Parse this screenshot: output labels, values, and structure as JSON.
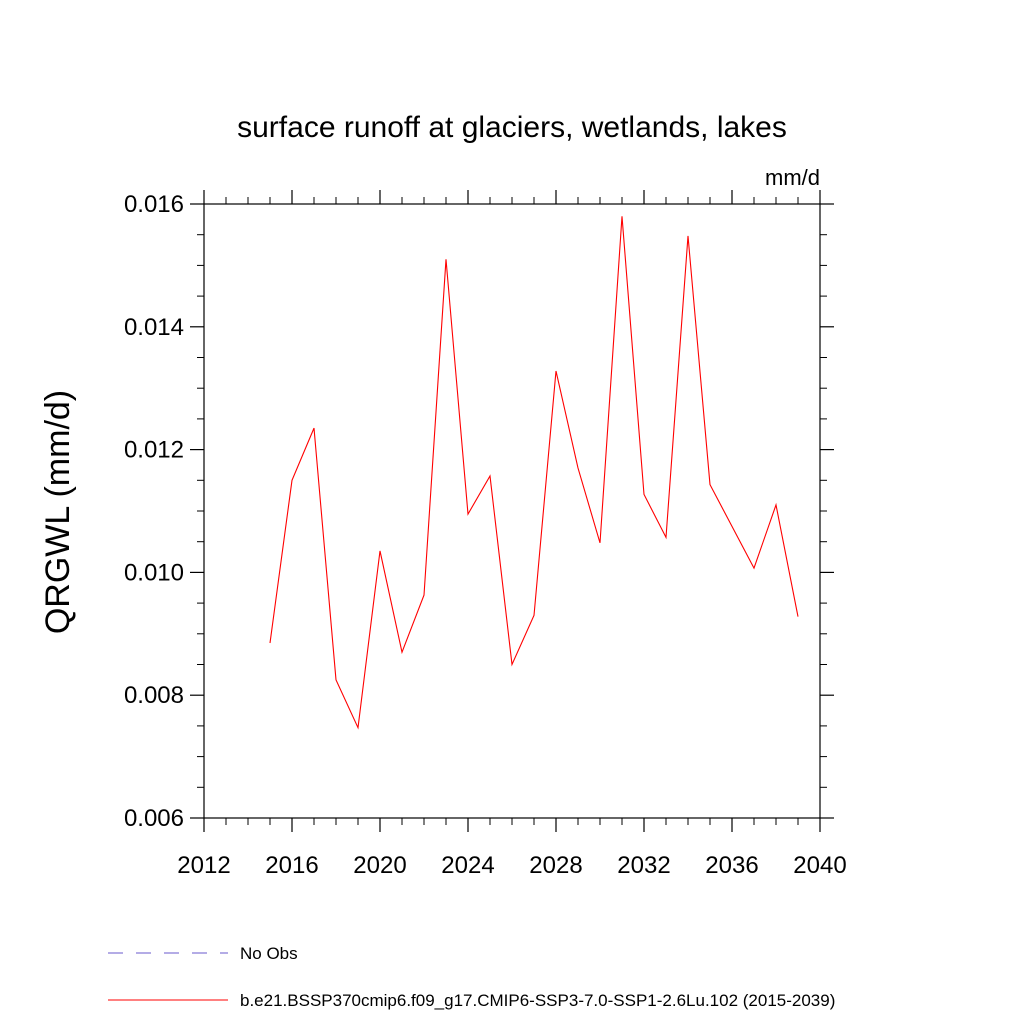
{
  "chart_data": {
    "type": "line",
    "title": "surface runoff at glaciers, wetlands, lakes",
    "units_label": "mm/d",
    "xlabel": "",
    "ylabel": "QRGWL  (mm/d)",
    "xlim": [
      2012,
      2040
    ],
    "ylim": [
      0.006,
      0.016
    ],
    "x_ticks": [
      "2012",
      "2016",
      "2020",
      "2024",
      "2028",
      "2032",
      "2036",
      "2040"
    ],
    "y_ticks": [
      "0.006",
      "0.008",
      "0.010",
      "0.012",
      "0.014",
      "0.016"
    ],
    "x_tick_values": [
      2012,
      2016,
      2020,
      2024,
      2028,
      2032,
      2036,
      2040
    ],
    "y_tick_values": [
      0.006,
      0.008,
      0.01,
      0.012,
      0.014,
      0.016
    ],
    "grid": false,
    "legend_position": "bottom-left",
    "series": [
      {
        "name": "b.e21.BSSP370cmip6.f09_g17.CMIP6-SSP3-7.0-SSP1-2.6Lu.102 (2015-2039)",
        "color": "#ff0000",
        "style": "solid",
        "x": [
          2015,
          2016,
          2017,
          2018,
          2019,
          2020,
          2021,
          2022,
          2023,
          2024,
          2025,
          2026,
          2027,
          2028,
          2029,
          2030,
          2031,
          2032,
          2033,
          2034,
          2035,
          2036,
          2037,
          2038,
          2039
        ],
        "y": [
          0.00885,
          0.0115,
          0.01235,
          0.00825,
          0.00747,
          0.01035,
          0.0087,
          0.00963,
          0.0151,
          0.01095,
          0.01157,
          0.0085,
          0.0093,
          0.01328,
          0.0117,
          0.01048,
          0.0158,
          0.01127,
          0.01057,
          0.01548,
          0.01143,
          0.01075,
          0.01007,
          0.0111,
          0.00928
        ]
      }
    ],
    "legend": [
      {
        "label": "No Obs",
        "color": "#6a5acd",
        "style": "dashed"
      },
      {
        "label": "b.e21.BSSP370cmip6.f09_g17.CMIP6-SSP3-7.0-SSP1-2.6Lu.102 (2015-2039)",
        "color": "#ff0000",
        "style": "solid"
      }
    ]
  }
}
